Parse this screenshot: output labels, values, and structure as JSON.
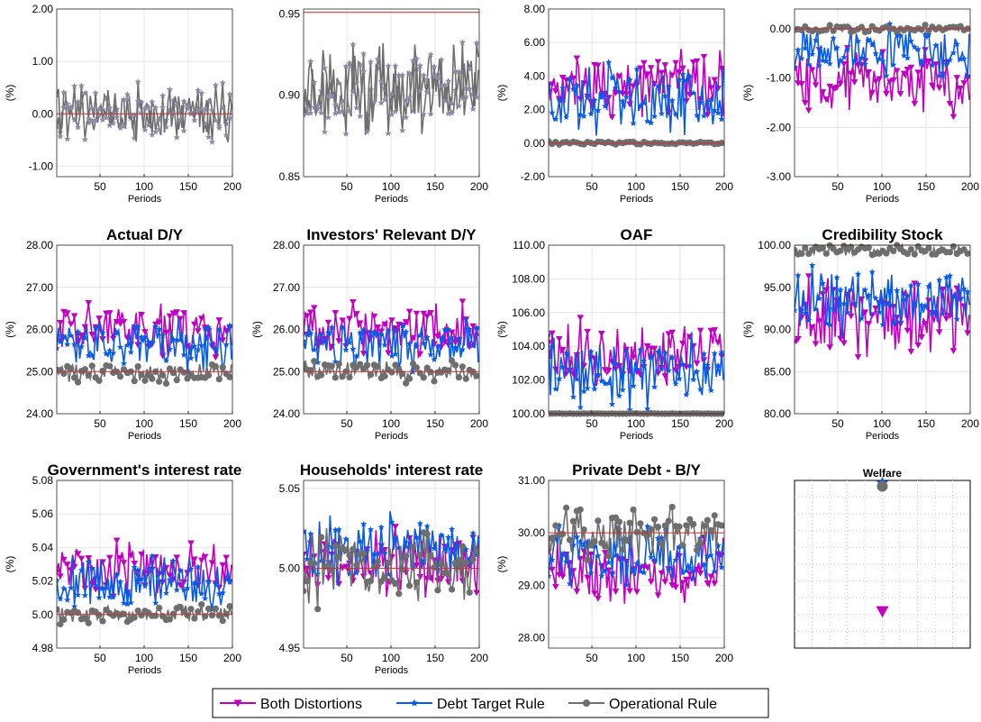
{
  "legend": [
    {
      "name": "Both Distortions",
      "color": "#c000c0",
      "marker": "triangle-down"
    },
    {
      "name": "Debt Target Rule",
      "color": "#0a5ae6",
      "marker": "star"
    },
    {
      "name": "Operational Rule",
      "color": "#6e6e6e",
      "marker": "circle"
    }
  ],
  "chart_data": [
    {
      "type": "line",
      "title": "",
      "xlabel": "Periods",
      "ylabel": "(%)",
      "xlim": [
        1,
        200
      ],
      "xticks": [
        "50",
        "100",
        "150",
        "200"
      ],
      "ylim": [
        -1.2,
        2.0
      ],
      "yticks": [
        "-1.00",
        "0.00",
        "1.00",
        "2.00"
      ],
      "ref_line": 0.0,
      "grid": true,
      "series": [
        {
          "style": "grey",
          "center": 0.0,
          "spread": 0.42,
          "seed": 11
        },
        {
          "style": "grey",
          "center": 0.0,
          "spread": 0.35,
          "seed": 12
        }
      ]
    },
    {
      "type": "line",
      "title": "",
      "xlabel": "Periods",
      "ylabel": "",
      "xlim": [
        1,
        200
      ],
      "xticks": [
        "50",
        "100",
        "150",
        "200"
      ],
      "ylim": [
        0.85,
        0.953
      ],
      "yticks": [
        "0.85",
        "0.90",
        "0.95"
      ],
      "ref_line": 0.951,
      "grid": true,
      "series": [
        {
          "style": "grey",
          "center": 0.905,
          "spread": 0.022,
          "seed": 21
        },
        {
          "style": "grey",
          "center": 0.905,
          "spread": 0.018,
          "seed": 22
        }
      ]
    },
    {
      "type": "line",
      "title": "",
      "xlabel": "Periods",
      "ylabel": "(%)",
      "xlim": [
        1,
        200
      ],
      "xticks": [
        "50",
        "100",
        "150",
        "200"
      ],
      "ylim": [
        -2.0,
        8.0
      ],
      "yticks": [
        "-2.00",
        "0.00",
        "2.00",
        "4.00",
        "6.00",
        "8.00"
      ],
      "ref_line": 0.0,
      "grid": true,
      "series": [
        {
          "name": "Both Distortions",
          "center": 3.6,
          "spread": 1.3,
          "seed": 31
        },
        {
          "name": "Debt Target Rule",
          "center": 2.6,
          "spread": 1.5,
          "seed": 32
        },
        {
          "name": "Operational Rule",
          "center": 0.0,
          "spread": 0.08,
          "seed": 33
        }
      ]
    },
    {
      "type": "line",
      "title": "",
      "xlabel": "Periods",
      "ylabel": "(%)",
      "xlim": [
        1,
        200
      ],
      "xticks": [
        "50",
        "100",
        "150",
        "200"
      ],
      "ylim": [
        -3.0,
        0.4
      ],
      "yticks": [
        "-3.00",
        "-2.00",
        "-1.00",
        "0.00"
      ],
      "ref_line": 0.0,
      "grid": true,
      "series": [
        {
          "name": "Both Distortions",
          "center": -1.1,
          "spread": 0.45,
          "seed": 41
        },
        {
          "name": "Debt Target Rule",
          "center": -0.45,
          "spread": 0.35,
          "seed": 42
        },
        {
          "name": "Operational Rule",
          "center": 0.0,
          "spread": 0.05,
          "seed": 43
        }
      ]
    },
    {
      "type": "line",
      "title": "Actual D/Y",
      "xlabel": "Periods",
      "ylabel": "(%)",
      "xlim": [
        1,
        200
      ],
      "xticks": [
        "50",
        "100",
        "150",
        "200"
      ],
      "ylim": [
        24.0,
        28.0
      ],
      "yticks": [
        "24.00",
        "25.00",
        "26.00",
        "27.00",
        "28.00"
      ],
      "ref_line": 25.0,
      "grid": true,
      "series": [
        {
          "name": "Both Distortions",
          "center": 26.0,
          "spread": 0.42,
          "seed": 51
        },
        {
          "name": "Debt Target Rule",
          "center": 25.65,
          "spread": 0.45,
          "seed": 52
        },
        {
          "name": "Operational Rule",
          "center": 25.0,
          "spread": 0.18,
          "seed": 53
        }
      ]
    },
    {
      "type": "line",
      "title": "Investors' Relevant D/Y",
      "xlabel": "Periods",
      "ylabel": "(%)",
      "xlim": [
        1,
        200
      ],
      "xticks": [
        "50",
        "100",
        "150",
        "200"
      ],
      "ylim": [
        24.0,
        28.0
      ],
      "yticks": [
        "24.00",
        "25.00",
        "26.00",
        "27.00",
        "28.00"
      ],
      "ref_line": 25.0,
      "grid": true,
      "series": [
        {
          "name": "Both Distortions",
          "center": 26.0,
          "spread": 0.42,
          "seed": 61
        },
        {
          "name": "Debt Target Rule",
          "center": 25.65,
          "spread": 0.45,
          "seed": 62
        },
        {
          "name": "Operational Rule",
          "center": 25.0,
          "spread": 0.18,
          "seed": 63
        }
      ]
    },
    {
      "type": "line",
      "title": "OAF",
      "xlabel": "Periods",
      "ylabel": "(%)",
      "xlim": [
        1,
        200
      ],
      "xticks": [
        "50",
        "100",
        "150",
        "200"
      ],
      "ylim": [
        100.0,
        110.0
      ],
      "yticks": [
        "100.00",
        "102.00",
        "104.00",
        "106.00",
        "108.00",
        "110.00"
      ],
      "ref_line": 100.0,
      "grid": true,
      "series": [
        {
          "name": "Both Distortions",
          "center": 103.6,
          "spread": 1.4,
          "seed": 71
        },
        {
          "name": "Debt Target Rule",
          "center": 102.6,
          "spread": 1.5,
          "seed": 72
        },
        {
          "name": "Operational Rule",
          "center": 100.0,
          "spread": 0.02,
          "seed": 73
        }
      ]
    },
    {
      "type": "line",
      "title": "Credibility Stock",
      "xlabel": "Periods",
      "ylabel": "(%)",
      "xlim": [
        1,
        200
      ],
      "xticks": [
        "50",
        "100",
        "150",
        "200"
      ],
      "ylim": [
        80.0,
        100.0
      ],
      "yticks": [
        "80.00",
        "85.00",
        "90.00",
        "95.00",
        "100.00"
      ],
      "ref_line": 100.0,
      "grid": true,
      "series": [
        {
          "name": "Both Distortions",
          "center": 91.5,
          "spread": 3.4,
          "seed": 81
        },
        {
          "name": "Debt Target Rule",
          "center": 93.5,
          "spread": 3.0,
          "seed": 82
        },
        {
          "name": "Operational Rule",
          "center": 99.4,
          "spread": 0.5,
          "seed": 83
        }
      ]
    },
    {
      "type": "line",
      "title": "Government's interest rate",
      "xlabel": "Periods",
      "ylabel": "(%)",
      "xlim": [
        1,
        200
      ],
      "xticks": [
        "50",
        "100",
        "150",
        "200"
      ],
      "ylim": [
        4.98,
        5.08
      ],
      "yticks": [
        "4.98",
        "5.00",
        "5.02",
        "5.04",
        "5.06",
        "5.08"
      ],
      "ref_line": 5.0,
      "grid": true,
      "series": [
        {
          "name": "Both Distortions",
          "center": 5.027,
          "spread": 0.011,
          "seed": 91
        },
        {
          "name": "Debt Target Rule",
          "center": 5.017,
          "spread": 0.012,
          "seed": 92
        },
        {
          "name": "Operational Rule",
          "center": 5.0,
          "spread": 0.004,
          "seed": 93
        }
      ]
    },
    {
      "type": "line",
      "title": "Households' interest rate",
      "xlabel": "Periods",
      "ylabel": "",
      "xlim": [
        1,
        200
      ],
      "xticks": [
        "50",
        "100",
        "150",
        "200"
      ],
      "ylim": [
        4.95,
        5.055
      ],
      "yticks": [
        "4.95",
        "5.00",
        "5.05"
      ],
      "ref_line": 5.0,
      "grid": true,
      "series": [
        {
          "name": "Both Distortions",
          "center": 5.005,
          "spread": 0.016,
          "seed": 101
        },
        {
          "name": "Debt Target Rule",
          "center": 5.012,
          "spread": 0.016,
          "seed": 102
        },
        {
          "name": "Operational Rule",
          "center": 5.0,
          "spread": 0.016,
          "seed": 103
        }
      ]
    },
    {
      "type": "line",
      "title": "Private Debt - B/Y",
      "xlabel": "",
      "ylabel": "(%)",
      "xlim": [
        1,
        200
      ],
      "xticks": [
        "50",
        "100",
        "150",
        "200"
      ],
      "ylim": [
        27.8,
        31.0
      ],
      "yticks": [
        "28.00",
        "29.00",
        "30.00",
        "31.00"
      ],
      "ref_line": 30.0,
      "grid": true,
      "series": [
        {
          "name": "Both Distortions",
          "center": 29.25,
          "spread": 0.42,
          "seed": 111
        },
        {
          "name": "Debt Target Rule",
          "center": 29.55,
          "spread": 0.38,
          "seed": 112
        },
        {
          "name": "Operational Rule",
          "center": 29.95,
          "spread": 0.35,
          "seed": 113
        }
      ]
    },
    {
      "type": "scatter",
      "title": "Welfare",
      "xlabel": "",
      "ylabel": "",
      "grid": "dotted",
      "points": [
        {
          "name": "Both Distortions",
          "y": 0.22
        },
        {
          "name": "Debt Target Rule",
          "y": 0.985
        },
        {
          "name": "Operational Rule",
          "y": 0.965
        }
      ]
    }
  ]
}
